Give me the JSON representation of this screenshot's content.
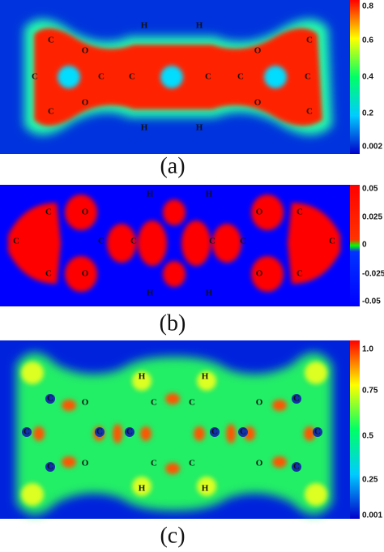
{
  "panels": [
    {
      "caption": "(a)",
      "colorbar_ticks": [
        "0.8",
        "0.6",
        "0.4",
        "0.2",
        "0.002"
      ],
      "atoms": [
        "H",
        "H",
        "C",
        "O",
        "O",
        "C",
        "C",
        "C",
        "C",
        "C",
        "C",
        "C",
        "C",
        "O",
        "O",
        "C",
        "H",
        "H"
      ]
    },
    {
      "caption": "(b)",
      "colorbar_ticks": [
        "0.05",
        "0.025",
        "0",
        "-0.025",
        "-0.05"
      ],
      "atoms": [
        "H",
        "H",
        "C",
        "O",
        "O",
        "C",
        "C",
        "C",
        "C",
        "C",
        "C",
        "C",
        "C",
        "O",
        "O",
        "C",
        "H",
        "H"
      ]
    },
    {
      "caption": "(c)",
      "colorbar_ticks": [
        "1.0",
        "0.75",
        "0.5",
        "0.25",
        "0.001"
      ],
      "atoms": [
        "H",
        "H",
        "O",
        "C",
        "C",
        "O",
        "C",
        "C",
        "C",
        "C",
        "C",
        "C",
        "O",
        "C",
        "C",
        "O",
        "H",
        "H",
        "C",
        "C",
        "C",
        "C"
      ]
    }
  ]
}
